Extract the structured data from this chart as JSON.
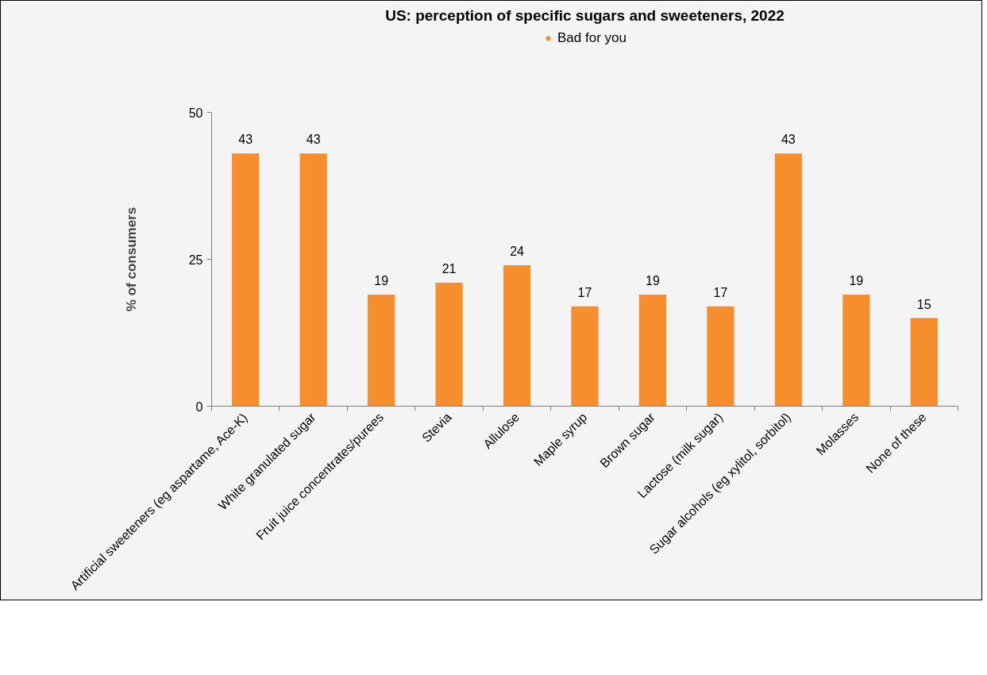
{
  "chart_data": {
    "type": "bar",
    "title": "US: perception of specific sugars and sweeteners, 2022",
    "ylabel": "% of consumers",
    "categories": [
      "Artificial sweeteners (eg aspartame, Ace-K)",
      "White granulated sugar",
      "Fruit juice concentrates/purees",
      "Stevia",
      "Allulose",
      "Maple syrup",
      "Brown sugar",
      "Lactose (milk sugar)",
      "Sugar alcohols (eg xylitol, sorbitol)",
      "Molasses",
      "None of these"
    ],
    "series": [
      {
        "name": "Bad for you",
        "color": "#f68e2e",
        "values": [
          43,
          43,
          19,
          21,
          24,
          17,
          19,
          17,
          43,
          19,
          15
        ]
      }
    ],
    "ylim": [
      0,
      50
    ],
    "yticks": [
      0,
      25,
      50
    ],
    "grid": false,
    "legend": "top",
    "data_labels": true
  }
}
